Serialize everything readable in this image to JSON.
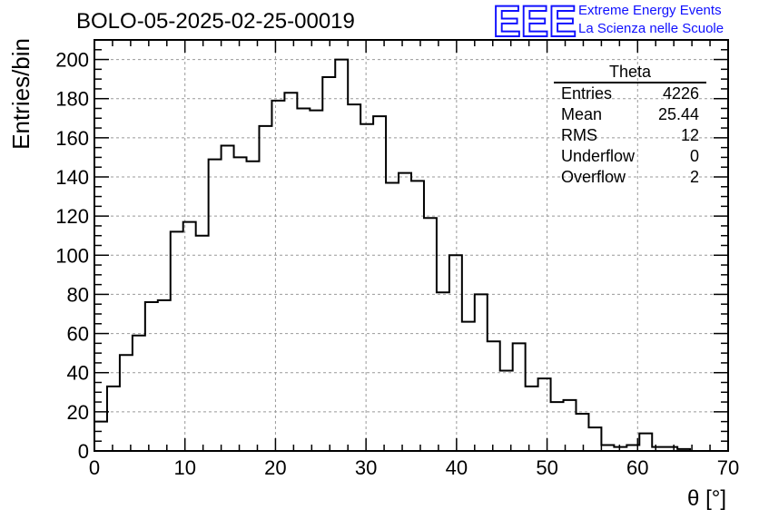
{
  "figure_title": "BOLO-05-2025-02-25-00019",
  "logo": {
    "mark": "EEE",
    "line1": "Extreme Energy Events",
    "line2": "La Scienza nelle Scuole",
    "color": "#1010ff"
  },
  "stats_box": {
    "title": "Theta",
    "rows": [
      {
        "label": "Entries",
        "value": "4226"
      },
      {
        "label": "Mean",
        "value": "25.44"
      },
      {
        "label": "RMS",
        "value": "12"
      },
      {
        "label": "Underflow",
        "value": "0"
      },
      {
        "label": "Overflow",
        "value": "2"
      }
    ]
  },
  "chart_data": {
    "type": "bar",
    "style": "step-histogram",
    "title": "BOLO-05-2025-02-25-00019",
    "xlabel": "θ [°]",
    "ylabel": "Entries/bin",
    "xlim": [
      0,
      70
    ],
    "ylim": [
      0,
      210
    ],
    "bin_width": 1.4,
    "bin_edges_start": 0,
    "xticks": [
      0,
      10,
      20,
      30,
      40,
      50,
      60,
      70
    ],
    "yticks": [
      0,
      20,
      40,
      60,
      80,
      100,
      120,
      140,
      160,
      180,
      200
    ],
    "grid": true,
    "values": [
      15,
      33,
      49,
      59,
      76,
      77,
      112,
      117,
      110,
      149,
      156,
      150,
      148,
      166,
      179,
      183,
      175,
      174,
      191,
      200,
      177,
      167,
      171,
      137,
      142,
      138,
      119,
      81,
      100,
      66,
      80,
      56,
      41,
      55,
      33,
      37,
      25,
      26,
      19,
      12,
      3,
      2,
      3,
      9,
      2,
      2,
      1,
      0,
      0,
      0
    ]
  }
}
